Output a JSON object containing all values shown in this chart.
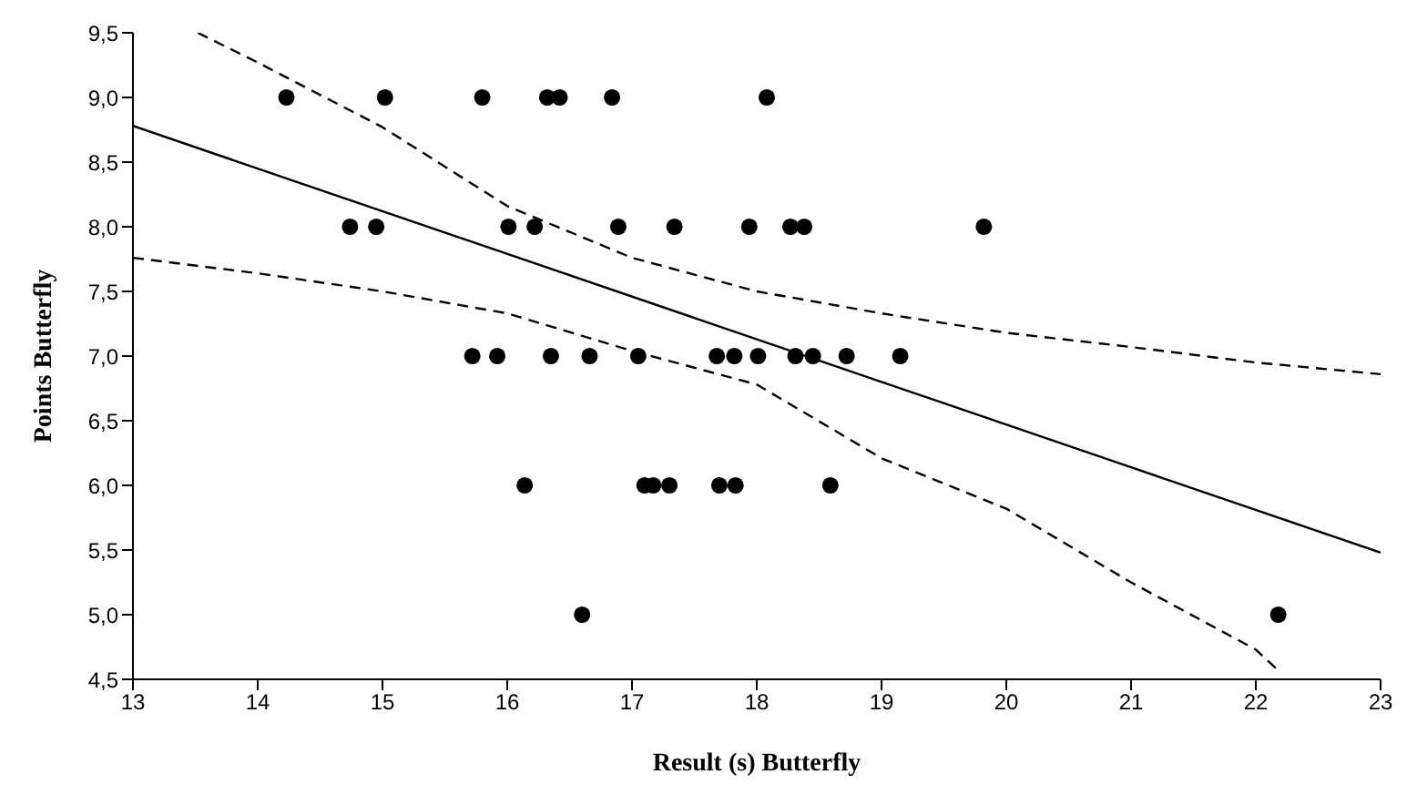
{
  "chart_data": {
    "type": "scatter",
    "xlabel": "Result (s) Butterfly",
    "ylabel": "Points Butterfly",
    "xlim": [
      13,
      23
    ],
    "xticks": [
      13,
      14,
      15,
      16,
      17,
      18,
      19,
      20,
      21,
      22,
      23
    ],
    "ylim": [
      4.5,
      9.5
    ],
    "yticks": [
      {
        "value": 4.5,
        "label": "4,5"
      },
      {
        "value": 5,
        "label": "5,0"
      },
      {
        "value": 5.5,
        "label": "5,5"
      },
      {
        "value": 6,
        "label": "6,0"
      },
      {
        "value": 6.5,
        "label": "6,5"
      },
      {
        "value": 7,
        "label": "7,0"
      },
      {
        "value": 7.5,
        "label": "7,5"
      },
      {
        "value": 8,
        "label": "8,0"
      },
      {
        "value": 8.5,
        "label": "8,5"
      },
      {
        "value": 9,
        "label": "9,0"
      },
      {
        "value": 9.5,
        "label": "9,5"
      }
    ],
    "grid": false,
    "series": [
      {
        "color": "#000000",
        "marker": "circle",
        "x": [
          14.23,
          15.02,
          15.8,
          16.32,
          16.42,
          16.84,
          18.08,
          14.74,
          14.95,
          16.01,
          16.22,
          16.89,
          17.34,
          17.94,
          18.27,
          18.38,
          19.82,
          15.72,
          15.92,
          16.35,
          16.66,
          17.05,
          17.68,
          17.82,
          18.01,
          18.31,
          18.45,
          18.72,
          19.15,
          16.14,
          17.1,
          17.17,
          17.3,
          17.7,
          17.83,
          18.59,
          16.6,
          22.18
        ],
        "values": [
          9,
          9,
          9,
          9,
          9,
          9,
          9,
          8,
          8,
          8,
          8,
          8,
          8,
          8,
          8,
          8,
          8,
          7,
          7,
          7,
          7,
          7,
          7,
          7,
          7,
          7,
          7,
          7,
          7,
          6,
          6,
          6,
          6,
          6,
          6,
          6,
          5,
          5
        ]
      },
      {
        "type": "line",
        "color": "#000000",
        "marker": "none",
        "line_style": "solid",
        "x": [
          13,
          23
        ],
        "values": [
          8.78,
          5.48
        ]
      },
      {
        "type": "line",
        "color": "#000000",
        "marker": "none",
        "line_style": "dashed",
        "x": [
          13.52,
          14,
          15,
          16,
          17,
          18,
          19,
          20,
          21,
          22,
          23
        ],
        "values": [
          9.5,
          9.27,
          8.77,
          8.16,
          7.76,
          7.5,
          7.33,
          7.18,
          7.07,
          6.95,
          6.86
        ]
      },
      {
        "type": "line",
        "color": "#000000",
        "marker": "none",
        "line_style": "dashed",
        "x": [
          13,
          14,
          15,
          16,
          17,
          18,
          19,
          20,
          21,
          22,
          22.2
        ],
        "values": [
          7.76,
          7.64,
          7.5,
          7.33,
          7.04,
          6.78,
          6.21,
          5.82,
          5.25,
          4.73,
          4.55
        ]
      }
    ]
  }
}
